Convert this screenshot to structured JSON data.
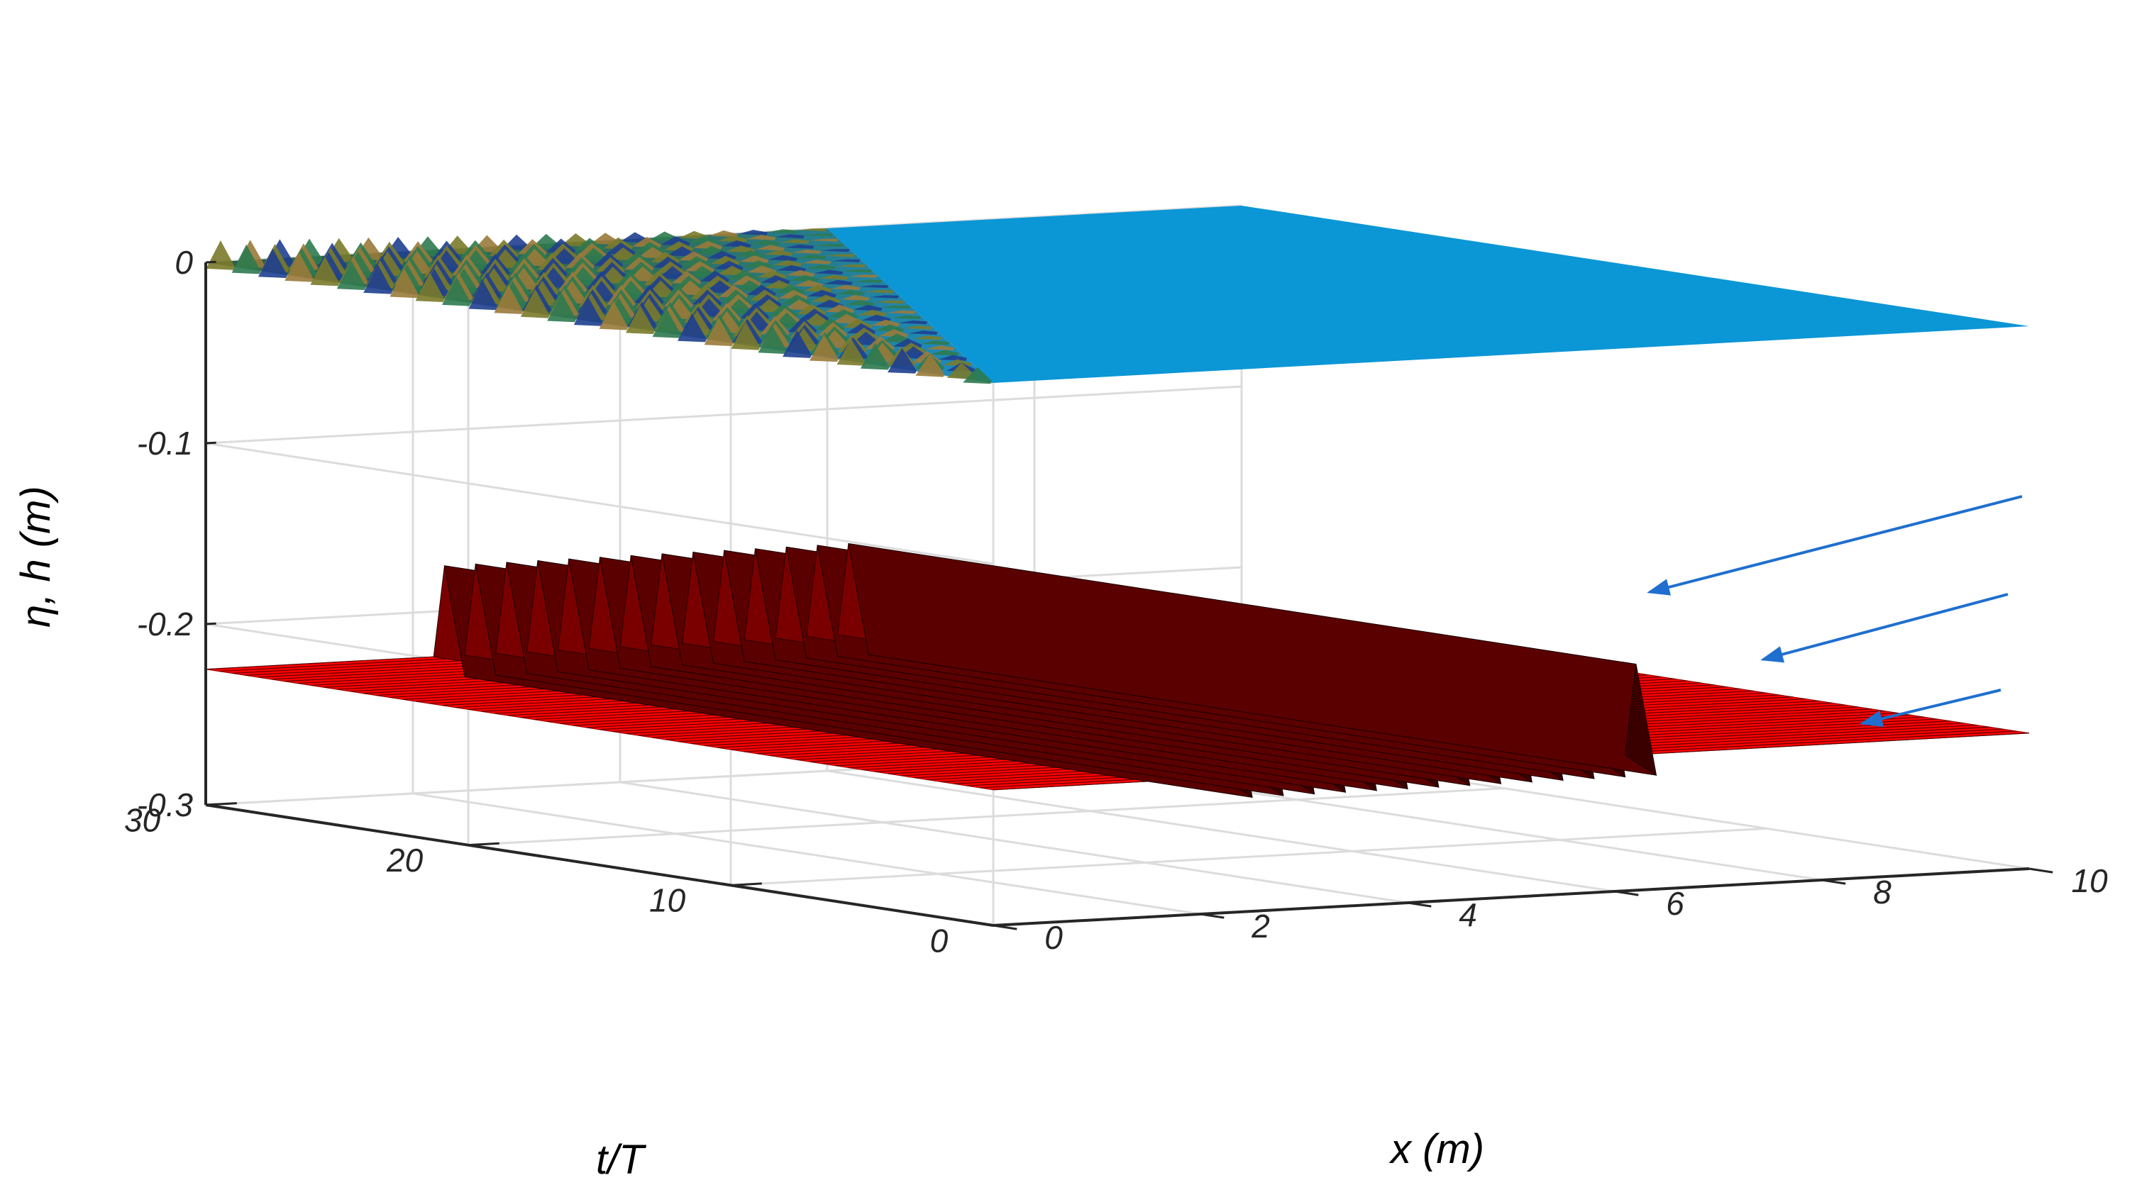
{
  "chart_data": {
    "type": "surface3d",
    "xlabel": "x (m)",
    "ylabel": "t/T",
    "zlabel": "η, h (m)",
    "xlim": [
      0,
      10
    ],
    "ylim": [
      0,
      30
    ],
    "zlim": [
      -0.3,
      0
    ],
    "x_ticks": [
      "0",
      "2",
      "4",
      "6",
      "8",
      "10"
    ],
    "y_ticks": [
      "0",
      "10",
      "20",
      "30"
    ],
    "z_ticks": [
      "0",
      "-0.1",
      "-0.2",
      "-0.3"
    ],
    "grid": true,
    "series": [
      {
        "surface": "free surface elevation",
        "z_mean": 0,
        "wave_amplitude_near_x0": 0.012,
        "flat_region_start_x_at_t30": 6.0,
        "front_line": [
          {
            "t": 0,
            "x": 0.0
          },
          {
            "t": 30,
            "x": 6.0
          }
        ],
        "colormap": [
          "#1f3f8f",
          "#2d7a4f",
          "#7a7a2a",
          "#9a7a3a"
        ],
        "flat_color": "#0b96d6"
      },
      {
        "surface": "bottom bed h",
        "z_base": -0.225,
        "ripple_x_range": [
          2.2,
          6.4
        ],
        "ripple_count": 14,
        "ripple_height": 0.05,
        "ripple_trough": 0.04,
        "color": "#ff0000",
        "shade_color": "#5a0000"
      }
    ],
    "annotations": [
      {
        "type": "arrow",
        "count": 3,
        "color": "#1f6fcf"
      }
    ]
  }
}
